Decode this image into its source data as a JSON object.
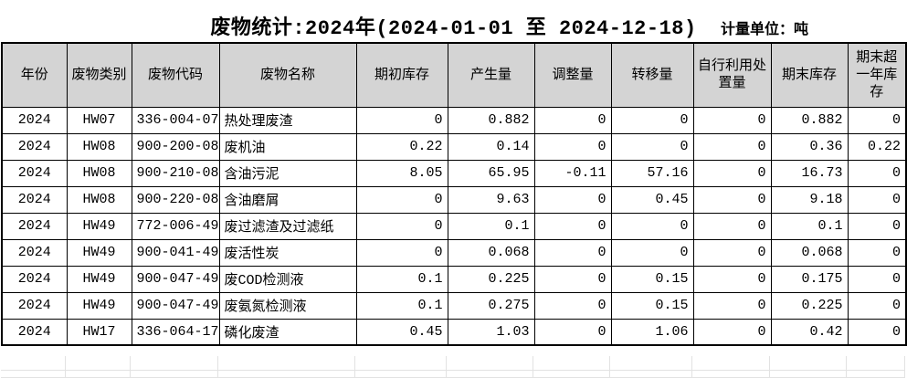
{
  "title": "废物统计:2024年(2024-01-01 至 2024-12-18)",
  "unit_label": "计量单位：吨",
  "table": {
    "columns": [
      "年份",
      "废物类别",
      "废物代码",
      "废物名称",
      "期初库存",
      "产生量",
      "调整量",
      "转移量",
      "自行利用处置量",
      "期末库存",
      "期末超一年库存"
    ],
    "rows": [
      [
        "2024",
        "HW07",
        "336-004-07",
        "热处理废渣",
        "0",
        "0.882",
        "0",
        "0",
        "0",
        "0.882",
        "0"
      ],
      [
        "2024",
        "HW08",
        "900-200-08",
        "废机油",
        "0.22",
        "0.14",
        "0",
        "0",
        "0",
        "0.36",
        "0.22"
      ],
      [
        "2024",
        "HW08",
        "900-210-08",
        "含油污泥",
        "8.05",
        "65.95",
        "-0.11",
        "57.16",
        "0",
        "16.73",
        "0"
      ],
      [
        "2024",
        "HW08",
        "900-220-08",
        "含油磨屑",
        "0",
        "9.63",
        "0",
        "0.45",
        "0",
        "9.18",
        "0"
      ],
      [
        "2024",
        "HW49",
        "772-006-49",
        "废过滤渣及过滤纸",
        "0",
        "0.1",
        "0",
        "0",
        "0",
        "0.1",
        "0"
      ],
      [
        "2024",
        "HW49",
        "900-041-49",
        "废活性炭",
        "0",
        "0.068",
        "0",
        "0",
        "0",
        "0.068",
        "0"
      ],
      [
        "2024",
        "HW49",
        "900-047-49",
        "废COD检测液",
        "0.1",
        "0.225",
        "0",
        "0.15",
        "0",
        "0.175",
        "0"
      ],
      [
        "2024",
        "HW49",
        "900-047-49",
        "废氨氮检测液",
        "0.1",
        "0.275",
        "0",
        "0.15",
        "0",
        "0.225",
        "0"
      ],
      [
        "2024",
        "HW17",
        "336-064-17",
        "磷化废渣",
        "0.45",
        "1.03",
        "0",
        "1.06",
        "0",
        "0.42",
        "0"
      ]
    ]
  },
  "colors": {
    "header_bg": "#d4d4d4",
    "table_border": "#000000",
    "empty_grid_line": "#e2e2e2",
    "text": "#000000",
    "background": "#ffffff"
  }
}
